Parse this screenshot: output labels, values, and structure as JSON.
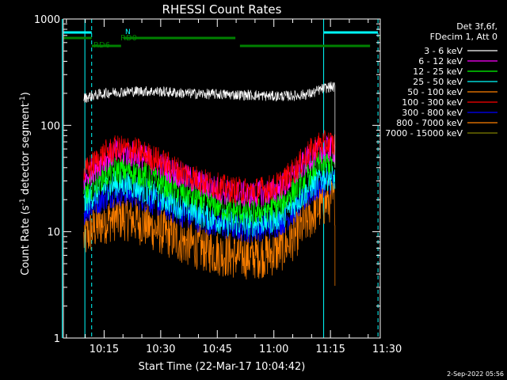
{
  "chart_data": {
    "type": "line",
    "title": "RHESSI Count Rates",
    "xlabel": "Start Time (22-Mar-17 10:04:42)",
    "ylabel_main": "Count Rate (s",
    "ylabel_sup": "-1",
    "ylabel_mid": " detector segment",
    "ylabel_sup2": "-1",
    "ylabel_end": ")",
    "y_scale": "log",
    "ylim": [
      1,
      1000
    ],
    "xlim_minutes": [
      10.07,
      11.47
    ],
    "x_ticks": [
      {
        "label": "10:15",
        "t": 10.25
      },
      {
        "label": "10:30",
        "t": 10.5
      },
      {
        "label": "10:45",
        "t": 10.75
      },
      {
        "label": "11:00",
        "t": 11.0
      },
      {
        "label": "11:15",
        "t": 11.25
      },
      {
        "label": "11:30",
        "t": 11.5
      }
    ],
    "y_ticks": [
      {
        "label": "1",
        "v": 1
      },
      {
        "label": "10",
        "v": 10
      },
      {
        "label": "100",
        "v": 100
      },
      {
        "label": "1000",
        "v": 1000
      }
    ],
    "legend_header": [
      "Det 3f,6f,",
      "FDecim 1, Att 0"
    ],
    "legend_placement": "right",
    "series": [
      {
        "name": "3 - 6 keV",
        "color": "#ffffff",
        "t": [
          10.16,
          10.2,
          10.25,
          10.3,
          10.4,
          10.5,
          10.6,
          10.7,
          10.8,
          10.9,
          11.0,
          11.1,
          11.17,
          11.2,
          11.23,
          11.25,
          11.27
        ],
        "v": [
          180,
          190,
          200,
          205,
          210,
          208,
          200,
          197,
          195,
          192,
          188,
          190,
          200,
          215,
          225,
          230,
          228
        ]
      },
      {
        "name": "6 - 12 keV",
        "color": "#ff00ff",
        "t": [
          10.16,
          10.2,
          10.25,
          10.3,
          10.35,
          10.4,
          10.5,
          10.6,
          10.7,
          10.8,
          10.9,
          11.0,
          11.05,
          11.1,
          11.15,
          11.2,
          11.25,
          11.27
        ],
        "v": [
          30,
          38,
          48,
          55,
          55,
          52,
          42,
          33,
          27,
          23,
          22,
          24,
          28,
          36,
          48,
          58,
          60,
          58
        ]
      },
      {
        "name": "12 - 25 keV",
        "color": "#00ff00",
        "t": [
          10.16,
          10.2,
          10.25,
          10.3,
          10.35,
          10.4,
          10.5,
          10.6,
          10.7,
          10.8,
          10.9,
          11.0,
          11.05,
          11.1,
          11.15,
          11.2,
          11.25,
          11.27
        ],
        "v": [
          22,
          28,
          34,
          38,
          38,
          36,
          29,
          23,
          19,
          16,
          15,
          17,
          20,
          26,
          35,
          43,
          45,
          43
        ]
      },
      {
        "name": "25 - 50 keV",
        "color": "#00ffff",
        "t": [
          10.16,
          10.2,
          10.25,
          10.3,
          10.35,
          10.4,
          10.5,
          10.6,
          10.7,
          10.8,
          10.9,
          11.0,
          11.05,
          11.1,
          11.15,
          11.2,
          11.25,
          11.27
        ],
        "v": [
          18,
          22,
          26,
          28,
          28,
          26,
          21,
          17,
          14,
          12,
          12,
          13,
          15,
          19,
          25,
          31,
          33,
          31
        ]
      },
      {
        "name": "50 - 100 keV",
        "color": "#ff8000",
        "t": [
          10.16,
          10.2,
          10.25,
          10.3,
          10.35,
          10.4,
          10.5,
          10.6,
          10.7,
          10.8,
          10.9,
          11.0,
          11.05,
          11.1,
          11.15,
          11.2,
          11.25,
          11.27
        ],
        "v": [
          8.5,
          10.5,
          12.5,
          13.5,
          13.5,
          12.5,
          10,
          8,
          6.8,
          6,
          5.8,
          6.3,
          7.3,
          9.5,
          13,
          17,
          20,
          19
        ]
      },
      {
        "name": "100 - 300 keV",
        "color": "#ff0000",
        "t": [
          10.16,
          10.2,
          10.25,
          10.3,
          10.35,
          10.4,
          10.5,
          10.6,
          10.7,
          10.8,
          10.9,
          11.0,
          11.05,
          11.1,
          11.15,
          11.2,
          11.25,
          11.27
        ],
        "v": [
          35,
          43,
          54,
          60,
          60,
          57,
          46,
          36,
          29,
          25,
          24,
          26,
          31,
          40,
          54,
          66,
          68,
          65
        ]
      },
      {
        "name": "300 - 800 keV",
        "color": "#0000ff",
        "t": [
          10.16,
          10.2,
          10.25,
          10.3,
          10.35,
          10.4,
          10.5,
          10.6,
          10.7,
          10.8,
          10.9,
          11.0,
          11.05,
          11.1,
          11.15,
          11.2,
          11.25,
          11.27
        ],
        "v": [
          15,
          18,
          21,
          23,
          23,
          21.5,
          18,
          14.5,
          12.5,
          11,
          10.5,
          11.5,
          13,
          16.5,
          22,
          27,
          30,
          29
        ]
      },
      {
        "name": "800 - 7000 keV",
        "color": "#ff8000",
        "t": [],
        "v": []
      },
      {
        "name": "7000 - 15000 keV",
        "color": "#808000",
        "t": [],
        "v": []
      }
    ],
    "vlines_solid": [
      10.065,
      10.165,
      11.22
    ],
    "vlines_dashed": [
      10.195,
      11.46
    ],
    "flag_bars": [
      {
        "label": "N",
        "color": "#00ffff",
        "segments": [
          [
            10.07,
            10.195
          ],
          [
            11.22,
            11.46
          ]
        ]
      },
      {
        "label": "RD0",
        "color": "#008000",
        "segments": [
          [
            10.07,
            10.195
          ],
          [
            10.335,
            10.83
          ],
          [
            11.465,
            11.49
          ]
        ]
      },
      {
        "label": "RD6",
        "color": "#008000",
        "segments": [
          [
            10.195,
            10.325
          ],
          [
            10.85,
            11.425
          ]
        ]
      }
    ],
    "timestamp": "2-Sep-2022 05:56"
  }
}
